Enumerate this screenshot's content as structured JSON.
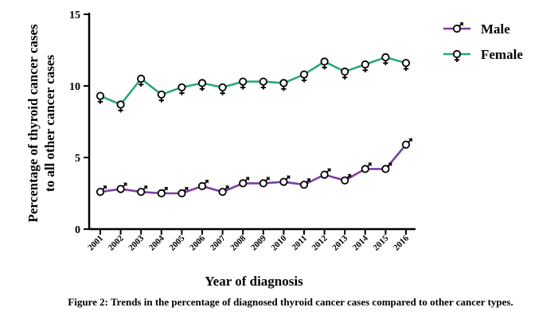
{
  "chart_data": {
    "type": "line",
    "title": "",
    "xlabel": "Year of diagnosis",
    "ylabel_line1": "Percentage of thyroid cancer cases",
    "ylabel_line2": "to all other cancer cases",
    "categories": [
      "2001",
      "2002",
      "2003",
      "2004",
      "2005",
      "2006",
      "2007",
      "2008",
      "2009",
      "2010",
      "2011",
      "2012",
      "2013",
      "2014",
      "2015",
      "2016"
    ],
    "ylim": [
      0,
      15
    ],
    "yticks": [
      0,
      5,
      10,
      15
    ],
    "grid": false,
    "legend_position": "top-right",
    "series": [
      {
        "name": "Male",
        "color": "#7b3fa0",
        "marker": "male-symbol",
        "values": [
          2.6,
          2.8,
          2.6,
          2.5,
          2.5,
          3.0,
          2.6,
          3.2,
          3.2,
          3.3,
          3.1,
          3.8,
          3.4,
          4.2,
          4.2,
          5.9
        ]
      },
      {
        "name": "Female",
        "color": "#2aa87a",
        "marker": "female-symbol",
        "values": [
          9.3,
          8.7,
          10.5,
          9.4,
          9.9,
          10.2,
          9.9,
          10.3,
          10.3,
          10.2,
          10.8,
          11.7,
          11.0,
          11.5,
          12.0,
          11.6
        ]
      }
    ]
  },
  "caption": "Figure 2: Trends in the percentage of diagnosed thyroid cancer cases compared to other cancer types."
}
